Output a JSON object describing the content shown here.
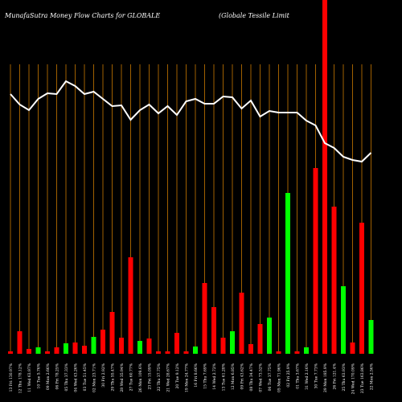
{
  "chart_data": {
    "type": "bar",
    "title": "MunafaSutra  Money  Flow  Charts for GLOBALE",
    "subtitle": "(Globale   Tessile   Limit",
    "categories": [
      "13 Fri 130.97%",
      "12 Thu 178.12%",
      "11 Wed 63.97%",
      "10 Tue 5.76%",
      "09 Mon 2.66%",
      "06 Fri 78.25%",
      "05 Thu 37.33%",
      "04 Wed 43.26%",
      "03 Tue 51.45%",
      "02 Mon 23.71%",
      "30 Fri 2.92%",
      "29 Thu 55.47%",
      "28 Wed 35.94%",
      "27 Tue 60.77%",
      "26 Mon 109.6%",
      "23 Fri 15.09%",
      "22 Thu 37.75%",
      "21 Wed 28.67%",
      "20 Tue 9.12%",
      "19 Mon 24.77%",
      "16 Fri 8.66%",
      "15 Thu 7.69%",
      "14 Wed 2.72%",
      "13 Tue 61.28%",
      "12 Mon 6.85%",
      "09 Fri 43.62%",
      "08 Thu 34.47%",
      "07 Wed 73.52%",
      "06 Tue 37.75%",
      "05 Mon 71.96%",
      "02 Fri 25.9%",
      "01 Thu 3.67%",
      "31 Wed 2.16%",
      "30 Tue 7.73%",
      "29 Mon 185.9%",
      "26 Fri 121.4%",
      "25 Thu 63.93%",
      "24 Wed 170.09%",
      "23 Tue 163.86%",
      "22 Mon 2.56%"
    ],
    "series": [
      {
        "name": "Money Flow",
        "colors": [
          "#ff0000",
          "#ff0000",
          "#ff0000",
          "#00ff00",
          "#ff0000",
          "#ff0000",
          "#00ff00",
          "#ff0000",
          "#ff0000",
          "#00ff00",
          "#ff0000",
          "#ff0000",
          "#ff0000",
          "#ff0000",
          "#00ff00",
          "#ff0000",
          "#ff0000",
          "#ff0000",
          "#ff0000",
          "#ff0000",
          "#00ff00",
          "#ff0000",
          "#ff0000",
          "#ff0000",
          "#00ff00",
          "#ff0000",
          "#ff0000",
          "#ff0000",
          "#00ff00",
          "#ff0000",
          "#00ff00",
          "#ff0000",
          "#00ff00",
          "#ff0000",
          "#ff0000",
          "#ff0000",
          "#00ff00",
          "#ff0000",
          "#ff0000",
          "#00ff00"
        ],
        "values": [
          3,
          28,
          6,
          8,
          3,
          8,
          13,
          14,
          10,
          21,
          30,
          52,
          20,
          120,
          16,
          19,
          3,
          3,
          26,
          3,
          9,
          88,
          58,
          20,
          28,
          76,
          12,
          37,
          45,
          3,
          200,
          3,
          8,
          231,
          440,
          183,
          84,
          14,
          163,
          42
        ]
      },
      {
        "name": "Price",
        "color": "#ffffff",
        "type": "line",
        "values": [
          323,
          310,
          303,
          317,
          324,
          323,
          339,
          333,
          323,
          326,
          317,
          308,
          309,
          291,
          303,
          310,
          299,
          308,
          297,
          314,
          317,
          311,
          311,
          320,
          319,
          305,
          315,
          295,
          302,
          300,
          300,
          300,
          290,
          284,
          262,
          256,
          245,
          241,
          239,
          250
        ]
      }
    ],
    "ylim": [
      0,
      440
    ]
  }
}
